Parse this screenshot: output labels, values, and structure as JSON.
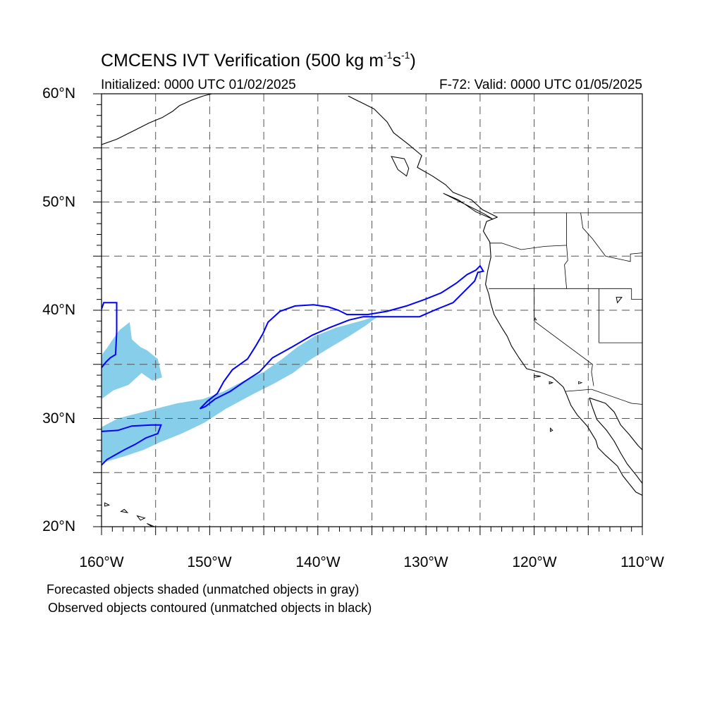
{
  "title": {
    "main": "CMCENS IVT Verification (500 kg m",
    "exp1": "-1",
    "mid": "s",
    "exp2": "-1",
    "end": ")"
  },
  "subtitle_left": "Initialized: 0000 UTC 01/02/2025",
  "subtitle_right": "F-72: Valid: 0000 UTC 01/05/2025",
  "lat_labels": [
    "60°N",
    "50°N",
    "40°N",
    "30°N",
    "20°N"
  ],
  "lon_labels": [
    "160°W",
    "150°W",
    "140°W",
    "130°W",
    "120°W",
    "110°W"
  ],
  "footnote_1": "Forecasted objects shaded (unmatched objects in gray)",
  "footnote_2": "Observed objects contoured (unmatched objects in black)",
  "colors": {
    "forecast_fill": "#87ceeb",
    "observed_contour": "#0000ff",
    "coastline": "#000000",
    "grid": "#555555"
  },
  "map": {
    "lon_range": [
      -160,
      -110
    ],
    "lat_range": [
      20,
      60
    ],
    "grid_lon_step": 5,
    "grid_lat_step": 5,
    "forecast_object_west": [
      [
        -160.0,
        35.7
      ],
      [
        -159.9,
        36.0
      ],
      [
        -159.5,
        36.5
      ],
      [
        -158.9,
        37.4
      ],
      [
        -158.3,
        38.2
      ],
      [
        -157.4,
        38.9
      ],
      [
        -157.2,
        37.3
      ],
      [
        -156.4,
        36.6
      ],
      [
        -155.8,
        36.3
      ],
      [
        -154.8,
        35.5
      ],
      [
        -154.4,
        33.8
      ],
      [
        -155.3,
        33.5
      ],
      [
        -156.3,
        34.2
      ],
      [
        -157.5,
        33.1
      ],
      [
        -158.9,
        32.6
      ],
      [
        -160.0,
        31.8
      ]
    ],
    "forecast_object_main": [
      [
        -160.0,
        29.2
      ],
      [
        -158.5,
        30.0
      ],
      [
        -155.0,
        30.9
      ],
      [
        -153.0,
        31.4
      ],
      [
        -150.6,
        31.8
      ],
      [
        -148.7,
        32.5
      ],
      [
        -147.0,
        33.4
      ],
      [
        -145.0,
        34.3
      ],
      [
        -143.3,
        35.5
      ],
      [
        -141.9,
        36.6
      ],
      [
        -140.3,
        37.6
      ],
      [
        -138.3,
        38.4
      ],
      [
        -135.7,
        39.1
      ],
      [
        -134.2,
        39.6
      ],
      [
        -135.7,
        38.5
      ],
      [
        -137.1,
        37.6
      ],
      [
        -138.8,
        36.6
      ],
      [
        -140.6,
        35.5
      ],
      [
        -142.3,
        34.2
      ],
      [
        -144.1,
        33.2
      ],
      [
        -145.9,
        32.3
      ],
      [
        -148.5,
        30.9
      ],
      [
        -150.5,
        29.6
      ],
      [
        -152.6,
        28.6
      ],
      [
        -154.6,
        27.8
      ],
      [
        -156.1,
        27.1
      ],
      [
        -157.9,
        26.5
      ],
      [
        -159.6,
        26.0
      ],
      [
        -160.0,
        25.9
      ]
    ],
    "observed_object_west": [
      [
        -160.0,
        40.1
      ],
      [
        -159.8,
        40.7
      ],
      [
        -158.6,
        40.7
      ],
      [
        -158.6,
        38.0
      ],
      [
        -158.7,
        35.9
      ],
      [
        -159.2,
        35.6
      ],
      [
        -159.6,
        35.2
      ],
      [
        -160.0,
        34.7
      ]
    ],
    "observed_object_main": [
      [
        -160.0,
        28.8
      ],
      [
        -158.5,
        28.9
      ],
      [
        -157.2,
        29.3
      ],
      [
        -155.4,
        29.4
      ],
      [
        -154.5,
        29.4
      ],
      [
        -154.8,
        28.6
      ],
      [
        -155.9,
        28.2
      ],
      [
        -156.9,
        27.6
      ],
      [
        -157.9,
        27.1
      ],
      [
        -158.8,
        26.6
      ],
      [
        -159.5,
        26.2
      ],
      [
        -160.0,
        25.7
      ]
    ],
    "observed_object_long": [
      [
        -150.9,
        30.9
      ],
      [
        -150.4,
        31.1
      ],
      [
        -149.5,
        31.8
      ],
      [
        -148.1,
        32.5
      ],
      [
        -146.8,
        33.4
      ],
      [
        -145.4,
        34.3
      ],
      [
        -144.2,
        35.6
      ],
      [
        -142.4,
        36.6
      ],
      [
        -140.5,
        37.7
      ],
      [
        -138.9,
        38.4
      ],
      [
        -137.1,
        39.1
      ],
      [
        -135.8,
        39.4
      ],
      [
        -133.2,
        39.4
      ],
      [
        -130.6,
        39.4
      ],
      [
        -129.0,
        40.1
      ],
      [
        -127.5,
        40.7
      ],
      [
        -126.5,
        41.7
      ],
      [
        -125.5,
        42.7
      ],
      [
        -125.2,
        43.5
      ],
      [
        -124.7,
        43.6
      ],
      [
        -125.0,
        44.1
      ],
      [
        -125.4,
        43.7
      ],
      [
        -126.2,
        43.3
      ],
      [
        -127.2,
        42.5
      ],
      [
        -128.6,
        41.6
      ],
      [
        -130.1,
        41.0
      ],
      [
        -131.8,
        40.4
      ],
      [
        -133.6,
        39.9
      ],
      [
        -135.4,
        39.6
      ],
      [
        -137.3,
        39.6
      ],
      [
        -138.1,
        40.0
      ],
      [
        -139.0,
        40.3
      ],
      [
        -140.4,
        40.5
      ],
      [
        -142.1,
        40.4
      ],
      [
        -143.5,
        39.9
      ],
      [
        -144.6,
        38.9
      ],
      [
        -145.1,
        37.8
      ],
      [
        -145.8,
        36.6
      ],
      [
        -146.5,
        35.5
      ],
      [
        -147.9,
        34.5
      ],
      [
        -148.7,
        33.4
      ],
      [
        -149.3,
        32.3
      ],
      [
        -150.2,
        31.6
      ],
      [
        -150.9,
        30.9
      ]
    ],
    "coastline_north_america": [
      [
        -137.2,
        59.8
      ],
      [
        -136.0,
        59.2
      ],
      [
        -134.8,
        58.6
      ],
      [
        -133.6,
        57.4
      ],
      [
        -133.0,
        56.4
      ],
      [
        -131.6,
        55.3
      ],
      [
        -130.4,
        54.3
      ],
      [
        -130.8,
        53.2
      ],
      [
        -129.4,
        52.4
      ],
      [
        -128.2,
        51.6
      ],
      [
        -127.5,
        50.9
      ],
      [
        -125.8,
        50.2
      ],
      [
        -124.8,
        49.3
      ],
      [
        -123.4,
        48.6
      ],
      [
        -124.4,
        48.2
      ],
      [
        -124.7,
        47.3
      ],
      [
        -124.1,
        46.3
      ],
      [
        -124.0,
        44.9
      ],
      [
        -124.3,
        43.6
      ],
      [
        -124.5,
        42.4
      ],
      [
        -124.2,
        41.5
      ],
      [
        -124.0,
        40.6
      ],
      [
        -123.7,
        39.6
      ],
      [
        -123.0,
        38.4
      ],
      [
        -122.5,
        37.6
      ],
      [
        -122.1,
        36.7
      ],
      [
        -121.4,
        35.6
      ],
      [
        -120.7,
        34.6
      ],
      [
        -119.2,
        34.2
      ],
      [
        -118.3,
        33.8
      ],
      [
        -117.3,
        32.9
      ],
      [
        -117.0,
        32.2
      ],
      [
        -116.6,
        31.2
      ],
      [
        -116.0,
        30.3
      ],
      [
        -115.1,
        29.3
      ],
      [
        -114.3,
        28.0
      ],
      [
        -114.1,
        27.3
      ],
      [
        -113.4,
        26.6
      ],
      [
        -112.3,
        25.6
      ],
      [
        -111.8,
        24.7
      ],
      [
        -110.6,
        23.2
      ],
      [
        -110.0,
        22.9
      ]
    ],
    "coastline_gulf_california": [
      [
        -114.9,
        31.9
      ],
      [
        -114.6,
        31.0
      ],
      [
        -114.2,
        29.9
      ],
      [
        -113.3,
        28.9
      ],
      [
        -112.6,
        27.9
      ],
      [
        -112.0,
        26.8
      ],
      [
        -111.4,
        25.8
      ],
      [
        -110.6,
        24.8
      ],
      [
        -110.0,
        24.0
      ]
    ],
    "coastline_mainland_mexico": [
      [
        -114.9,
        31.9
      ],
      [
        -113.4,
        31.4
      ],
      [
        -112.6,
        30.6
      ],
      [
        -112.0,
        29.4
      ],
      [
        -111.2,
        28.5
      ],
      [
        -110.4,
        27.5
      ],
      [
        -110.0,
        27.1
      ]
    ],
    "coastline_alaska": [
      [
        -160.0,
        55.3
      ],
      [
        -158.6,
        55.8
      ],
      [
        -157.0,
        56.6
      ],
      [
        -155.6,
        57.3
      ],
      [
        -154.4,
        57.8
      ],
      [
        -153.4,
        58.4
      ],
      [
        -152.8,
        58.9
      ],
      [
        -151.7,
        59.4
      ],
      [
        -150.6,
        59.8
      ],
      [
        -149.8,
        60.0
      ]
    ],
    "state_lines": [
      [
        [
          -123.8,
          49.0
        ],
        [
          -110.0,
          49.0
        ]
      ],
      [
        [
          -124.1,
          46.2
        ],
        [
          -123.0,
          46.2
        ],
        [
          -121.2,
          45.6
        ],
        [
          -119.0,
          45.9
        ],
        [
          -117.0,
          46.0
        ],
        [
          -117.0,
          49.0
        ]
      ],
      [
        [
          -124.2,
          42.0
        ],
        [
          -111.0,
          42.0
        ]
      ],
      [
        [
          -120.0,
          42.0
        ],
        [
          -120.0,
          39.0
        ],
        [
          -114.6,
          35.0
        ],
        [
          -114.7,
          34.3
        ],
        [
          -114.5,
          33.0
        ]
      ],
      [
        [
          -117.0,
          46.0
        ],
        [
          -116.9,
          44.6
        ],
        [
          -117.2,
          44.2
        ],
        [
          -117.0,
          42.0
        ]
      ],
      [
        [
          -114.0,
          42.0
        ],
        [
          -114.0,
          37.0
        ],
        [
          -110.0,
          37.0
        ]
      ],
      [
        [
          -114.7,
          32.7
        ],
        [
          -111.0,
          31.4
        ],
        [
          -110.0,
          31.3
        ]
      ],
      [
        [
          -117.1,
          32.5
        ],
        [
          -114.7,
          32.7
        ]
      ],
      [
        [
          -115.7,
          49.0
        ],
        [
          -115.5,
          47.6
        ],
        [
          -114.6,
          46.6
        ],
        [
          -113.4,
          45.0
        ],
        [
          -111.1,
          44.5
        ],
        [
          -111.1,
          45.2
        ],
        [
          -110.0,
          45.3
        ]
      ],
      [
        [
          -111.0,
          42.0
        ],
        [
          -111.0,
          41.0
        ],
        [
          -110.0,
          41.0
        ]
      ]
    ],
    "islands": [
      [
        [
          -133.2,
          54.2
        ],
        [
          -132.0,
          54.0
        ],
        [
          -131.6,
          53.1
        ],
        [
          -131.8,
          52.4
        ],
        [
          -132.6,
          53.0
        ],
        [
          -133.2,
          54.2
        ]
      ],
      [
        [
          -128.4,
          50.8
        ],
        [
          -127.0,
          50.2
        ],
        [
          -125.4,
          49.1
        ],
        [
          -123.8,
          48.4
        ],
        [
          -124.6,
          48.9
        ],
        [
          -126.8,
          50.0
        ],
        [
          -128.4,
          50.8
        ]
      ],
      [
        [
          -155.8,
          20.3
        ],
        [
          -155.0,
          19.8
        ],
        [
          -155.1,
          20.0
        ],
        [
          -155.8,
          20.3
        ]
      ],
      [
        [
          -156.7,
          21.0
        ],
        [
          -156.0,
          20.8
        ],
        [
          -156.4,
          20.6
        ],
        [
          -156.7,
          21.0
        ]
      ],
      [
        [
          -157.9,
          21.6
        ],
        [
          -157.6,
          21.3
        ],
        [
          -158.2,
          21.4
        ],
        [
          -157.9,
          21.6
        ]
      ],
      [
        [
          -159.7,
          22.2
        ],
        [
          -159.3,
          22.0
        ],
        [
          -159.7,
          21.9
        ],
        [
          -159.7,
          22.2
        ]
      ],
      [
        [
          -118.5,
          29.1
        ],
        [
          -118.3,
          28.9
        ],
        [
          -118.5,
          28.8
        ],
        [
          -118.5,
          29.1
        ]
      ],
      [
        [
          -118.6,
          33.4
        ],
        [
          -118.3,
          33.3
        ],
        [
          -118.6,
          33.2
        ],
        [
          -118.6,
          33.4
        ]
      ],
      [
        [
          -120.0,
          34.0
        ],
        [
          -119.4,
          33.9
        ],
        [
          -120.0,
          33.8
        ],
        [
          -120.0,
          34.0
        ]
      ],
      [
        [
          -112.4,
          41.2
        ],
        [
          -111.9,
          41.2
        ],
        [
          -112.3,
          40.7
        ],
        [
          -112.4,
          41.2
        ]
      ]
    ],
    "lakes": [
      [
        [
          -119.9,
          39.3
        ],
        [
          -119.8,
          39.1
        ],
        [
          -120.0,
          39.1
        ],
        [
          -119.9,
          39.3
        ]
      ],
      [
        [
          -115.9,
          33.4
        ],
        [
          -115.6,
          33.3
        ],
        [
          -115.9,
          33.2
        ],
        [
          -115.9,
          33.4
        ]
      ]
    ]
  }
}
